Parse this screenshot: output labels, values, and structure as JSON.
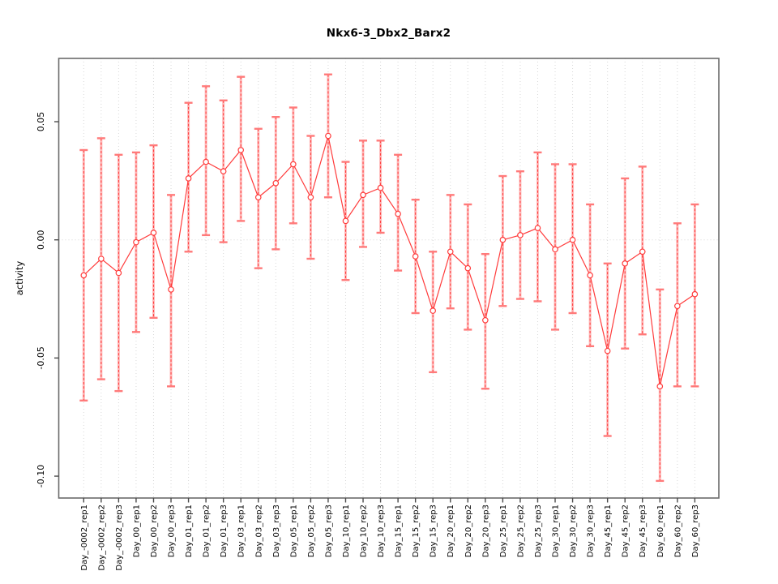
{
  "page": {
    "background": "#ffffff"
  },
  "chart_data": {
    "type": "line",
    "title": "Nkx6-3_Dbx2_Barx2",
    "ylabel": "activity",
    "xlabel": "",
    "legend": "none",
    "ylim": [
      -0.109,
      0.077
    ],
    "grid": {
      "vertical": "dotted line at every category tick",
      "horizontal_at": 0.0
    },
    "yticks": {
      "values": [
        0.05,
        0.0,
        -0.05,
        -0.1
      ],
      "labels": [
        "0.05",
        "0.00",
        "-0.05",
        "-0.10"
      ]
    },
    "categories": [
      "Day_-0002_rep1",
      "Day_-0002_rep2",
      "Day_-0002_rep3",
      "Day_00_rep1",
      "Day_00_rep2",
      "Day_00_rep3",
      "Day_01_rep1",
      "Day_01_rep2",
      "Day_01_rep3",
      "Day_03_rep1",
      "Day_03_rep2",
      "Day_03_rep3",
      "Day_05_rep1",
      "Day_05_rep2",
      "Day_05_rep3",
      "Day_10_rep1",
      "Day_10_rep2",
      "Day_10_rep3",
      "Day_15_rep1",
      "Day_15_rep2",
      "Day_15_rep3",
      "Day_20_rep1",
      "Day_20_rep2",
      "Day_20_rep3",
      "Day_25_rep1",
      "Day_25_rep2",
      "Day_25_rep3",
      "Day_30_rep1",
      "Day_30_rep2",
      "Day_30_rep3",
      "Day_45_rep1",
      "Day_45_rep2",
      "Day_45_rep3",
      "Day_60_rep1",
      "Day_60_rep2",
      "Day_60_rep3"
    ],
    "series": [
      {
        "name": "activity",
        "marker": "open-circle",
        "values": [
          -0.015,
          -0.008,
          -0.014,
          -0.001,
          0.003,
          -0.021,
          0.026,
          0.033,
          0.029,
          0.038,
          0.018,
          0.024,
          0.032,
          0.018,
          0.044,
          0.008,
          0.019,
          0.022,
          0.011,
          -0.007,
          -0.03,
          -0.005,
          -0.012,
          -0.034,
          0.0,
          0.002,
          0.005,
          -0.004,
          0.0,
          -0.015,
          -0.047,
          -0.01,
          -0.005,
          -0.062,
          -0.028,
          -0.023
        ],
        "error_low": [
          -0.068,
          -0.059,
          -0.064,
          -0.039,
          -0.033,
          -0.062,
          -0.005,
          0.002,
          -0.001,
          0.008,
          -0.012,
          -0.004,
          0.007,
          -0.008,
          0.018,
          -0.017,
          -0.003,
          0.003,
          -0.013,
          -0.031,
          -0.056,
          -0.029,
          -0.038,
          -0.063,
          -0.028,
          -0.025,
          -0.026,
          -0.038,
          -0.031,
          -0.045,
          -0.083,
          -0.046,
          -0.04,
          -0.102,
          -0.062,
          -0.062
        ],
        "error_high": [
          0.038,
          0.043,
          0.036,
          0.037,
          0.04,
          0.019,
          0.058,
          0.065,
          0.059,
          0.069,
          0.047,
          0.052,
          0.056,
          0.044,
          0.07,
          0.033,
          0.042,
          0.042,
          0.036,
          0.017,
          -0.005,
          0.019,
          0.015,
          -0.006,
          0.027,
          0.029,
          0.037,
          0.032,
          0.032,
          0.015,
          -0.01,
          0.026,
          0.031,
          -0.021,
          0.007,
          0.015
        ]
      }
    ],
    "colors": {
      "point": "#ff3b3b",
      "line": "#ff3b3b",
      "error_bar_core": "#ff3b3b",
      "error_bar_band": "#ffa3a3",
      "error_cap": "#ff7a7a",
      "grid": "#d8d8d8",
      "frame": "#6b6b6b",
      "tick": "#4a4a4a",
      "text": "#000000"
    }
  }
}
